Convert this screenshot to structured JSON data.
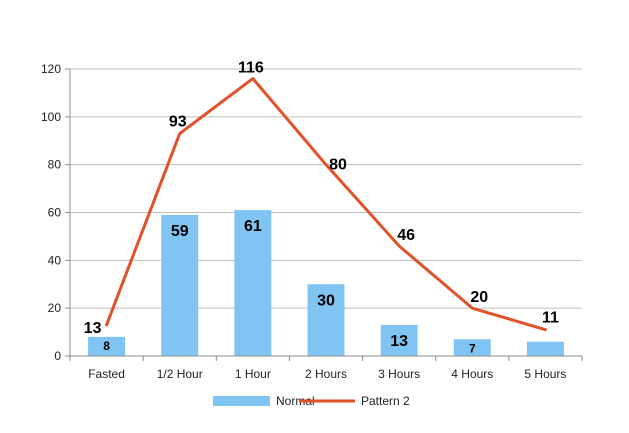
{
  "chart_data": {
    "type": "bar",
    "categories": [
      "Fasted",
      "1/2 Hour",
      "1 Hour",
      "2 Hours",
      "3 Hours",
      "4 Hours",
      "5 Hours"
    ],
    "ylim": [
      0,
      120
    ],
    "yticks": [
      0,
      20,
      40,
      60,
      80,
      100,
      120
    ],
    "grid": true,
    "legend_position": "bottom",
    "series": [
      {
        "name": "Normal",
        "type": "bar",
        "color": "#80C4F4",
        "values": [
          8,
          59,
          61,
          30,
          13,
          7,
          6
        ],
        "labels": [
          "8",
          "59",
          "61",
          "30",
          "13",
          "7",
          ""
        ]
      },
      {
        "name": "Pattern 2",
        "type": "line",
        "color": "#E0522A",
        "values": [
          13,
          93,
          116,
          80,
          46,
          20,
          11
        ],
        "labels": [
          "13",
          "93",
          "116",
          "80",
          "46",
          "20",
          "11"
        ]
      }
    ]
  }
}
